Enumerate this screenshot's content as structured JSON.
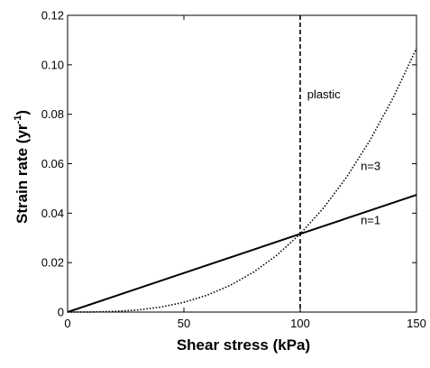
{
  "chart_data": {
    "type": "line",
    "xlabel": "Shear stress (kPa)",
    "ylabel_main": "Strain rate (yr",
    "ylabel_sup": "-1",
    "ylabel_end": ")",
    "xlim": [
      0,
      150
    ],
    "ylim": [
      0,
      0.12
    ],
    "xticks": [
      0,
      50,
      100,
      150
    ],
    "xtick_labels": [
      "0",
      "50",
      "100",
      "150"
    ],
    "yticks": [
      0,
      0.02,
      0.04,
      0.06,
      0.08,
      0.1,
      0.12
    ],
    "ytick_labels": [
      "0",
      "0.02",
      "0.04",
      "0.06",
      "0.08",
      "0.10",
      "0.12"
    ],
    "grid": false,
    "series": [
      {
        "label": "n=1",
        "style": "solid",
        "color": "#000000",
        "x": [
          0,
          25,
          50,
          75,
          100,
          125,
          150
        ],
        "y": [
          0,
          0.0079,
          0.0158,
          0.0237,
          0.0316,
          0.0395,
          0.0474
        ]
      },
      {
        "label": "n=3",
        "style": "dotted",
        "color": "#000000",
        "x": [
          0,
          10,
          20,
          30,
          40,
          50,
          60,
          70,
          80,
          90,
          100,
          110,
          120,
          130,
          140,
          150
        ],
        "y": [
          0,
          3e-05,
          0.00025,
          0.00085,
          0.00202,
          0.00395,
          0.00683,
          0.01084,
          0.01618,
          0.02304,
          0.0316,
          0.04206,
          0.0546,
          0.06943,
          0.08671,
          0.10665
        ]
      }
    ],
    "vertical_line": {
      "x": 100,
      "style": "dashed",
      "label": "plastic"
    },
    "annotations": [
      {
        "text": "plastic",
        "x": 103,
        "y": 0.0865
      },
      {
        "text": "n=3",
        "x": 126,
        "y": 0.0575
      },
      {
        "text": "n=1",
        "x": 126,
        "y": 0.0355
      }
    ]
  }
}
